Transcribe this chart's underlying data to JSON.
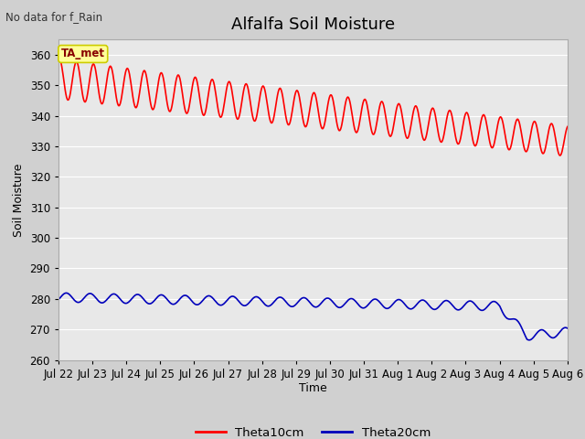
{
  "title": "Alfalfa Soil Moisture",
  "ylabel": "Soil Moisture",
  "xlabel": "Time",
  "top_left_text": "No data for f_Rain",
  "annotation_text": "TA_met",
  "ylim": [
    260,
    365
  ],
  "yticks": [
    260,
    270,
    280,
    290,
    300,
    310,
    320,
    330,
    340,
    350,
    360
  ],
  "xtick_labels": [
    "Jul 22",
    "Jul 23",
    "Jul 24",
    "Jul 25",
    "Jul 26",
    "Jul 27",
    "Jul 28",
    "Jul 29",
    "Jul 30",
    "Jul 31",
    "Aug 1",
    "Aug 2",
    "Aug 3",
    "Aug 4",
    "Aug 5",
    "Aug 6"
  ],
  "legend_labels": [
    "Theta10cm",
    "Theta20cm"
  ],
  "legend_colors": [
    "#ff0000",
    "#0000bb"
  ],
  "line1_color": "#ff0000",
  "line2_color": "#0000bb",
  "fig_bg_color": "#d0d0d0",
  "plot_bg_color": "#e8e8e8",
  "grid_color": "#ffffff",
  "title_fontsize": 13,
  "label_fontsize": 9,
  "tick_fontsize": 8.5,
  "annotation_color": "#880000",
  "annotation_bg": "#ffff99",
  "annotation_edge": "#cccc00"
}
